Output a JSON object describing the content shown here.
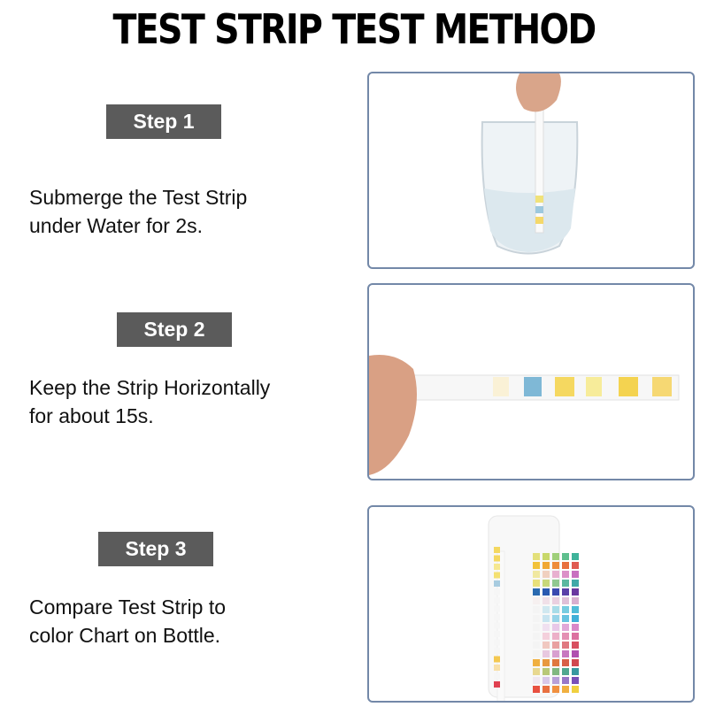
{
  "title": "TEST STRIP TEST METHOD",
  "steps": [
    {
      "label": "Step 1",
      "line1": "Submerge the Test Strip",
      "line2": "under Water for 2s.",
      "image": "hand-dipping-strip-in-glass-of-water"
    },
    {
      "label": "Step 2",
      "line1": "Keep the Strip Horizontally",
      "line2": "for about 15s.",
      "image": "hand-holding-strip-horizontally"
    },
    {
      "label": "Step 3",
      "line1": "Compare Test Strip to",
      "line2": "color Chart on Bottle.",
      "image": "strip-next-to-bottle-color-chart"
    }
  ],
  "colors": {
    "badge": "#5b5b5b",
    "panel_border": "#7388a8"
  }
}
